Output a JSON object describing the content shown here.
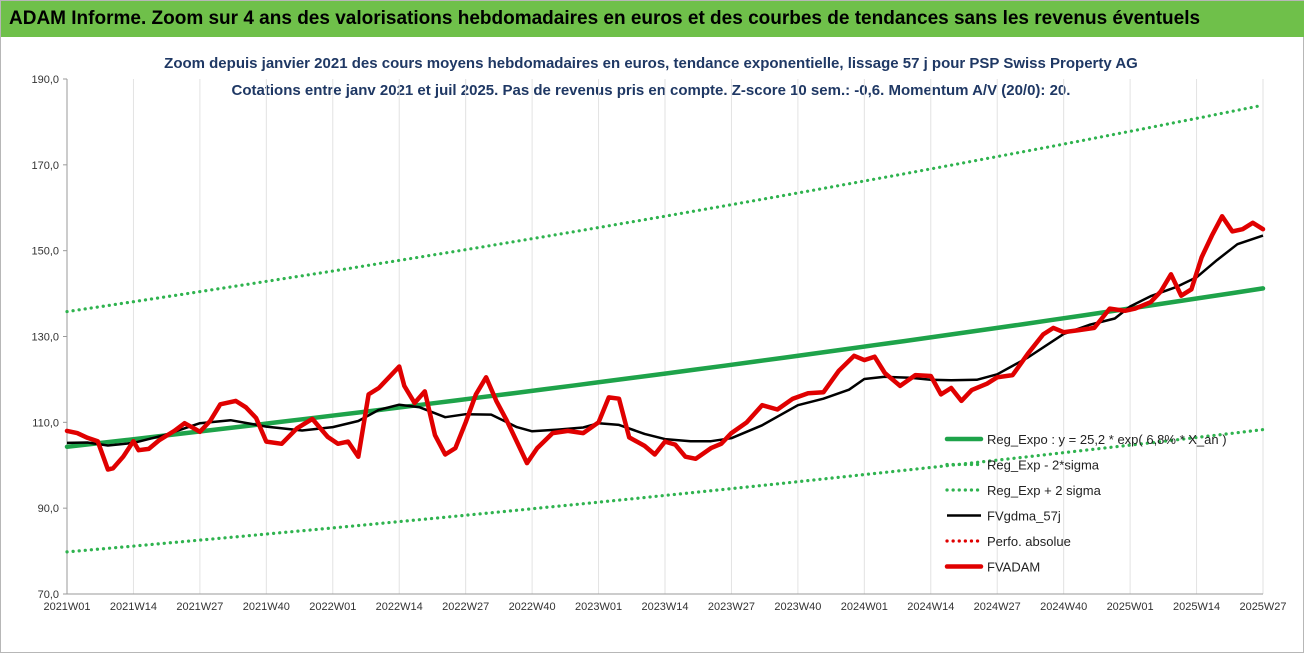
{
  "banner": {
    "title": "ADAM Informe. Zoom sur 4 ans des valorisations hebdomadaires en euros et des courbes de tendances sans les revenus éventuels"
  },
  "chart_data": {
    "type": "line",
    "title": "Zoom depuis janvier 2021 des cours moyens hebdomadaires en euros, tendance exponentielle, lissage 57 j pour PSP Swiss Property AG",
    "subtitle": "Cotations entre janv 2021 et juil 2025. Pas de revenus pris en compte. Z-score 10 sem.: -0,6. Momentum A/V (20/0): 20.",
    "xlabel": "",
    "ylabel": "",
    "ylim": [
      70,
      190
    ],
    "y_ticks": [
      "70,0",
      "90,0",
      "110,0",
      "130,0",
      "150,0",
      "170,0",
      "190,0"
    ],
    "x_ticks": [
      "2021W01",
      "2021W14",
      "2021W27",
      "2021W40",
      "2022W01",
      "2022W14",
      "2022W27",
      "2022W40",
      "2023W01",
      "2023W14",
      "2023W27",
      "2023W40",
      "2024W01",
      "2024W14",
      "2024W27",
      "2024W40",
      "2025W01",
      "2025W14",
      "2025W27"
    ],
    "grid": "vertical",
    "legend_position": "right",
    "legend": [
      {
        "label": "Reg_Expo : y = 25,2 * exp( 6,8% * X_an )",
        "color": "#1ea34a",
        "style": "solid-thick"
      },
      {
        "label": "Reg_Exp - 2*sigma",
        "color": "#2fb34f",
        "style": "dotted"
      },
      {
        "label": "Reg_Exp + 2 sigma",
        "color": "#2fb34f",
        "style": "dotted"
      },
      {
        "label": "FVgdma_57j",
        "color": "#000000",
        "style": "solid"
      },
      {
        "label": "Perfo. absolue",
        "color": "#e00000",
        "style": "dotted"
      },
      {
        "label": "FVADAM",
        "color": "#e00000",
        "style": "solid-thick"
      }
    ],
    "series": [
      {
        "name": "Reg_Expo : y = 25,2 * exp( 6,8% * X_an )",
        "x": [
          "2021W01",
          "2025W27"
        ],
        "values": [
          104.3,
          141.2
        ]
      },
      {
        "name": "Reg_Exp - 2*sigma",
        "x": [
          "2021W01",
          "2025W27"
        ],
        "values": [
          79.8,
          108.3
        ]
      },
      {
        "name": "Reg_Exp + 2 sigma",
        "x": [
          "2021W01",
          "2025W27"
        ],
        "values": [
          135.8,
          183.9
        ]
      },
      {
        "name": "FVgdma_57j",
        "x": [
          "2021W01",
          "2021W05",
          "2021W09",
          "2021W14",
          "2021W20",
          "2021W27",
          "2021W33",
          "2021W40",
          "2021W47",
          "2022W01",
          "2022W06",
          "2022W10",
          "2022W14",
          "2022W18",
          "2022W23",
          "2022W27",
          "2022W32",
          "2022W37",
          "2022W40",
          "2022W45",
          "2022W50",
          "2023W01",
          "2023W05",
          "2023W10",
          "2023W14",
          "2023W19",
          "2023W23",
          "2023W27",
          "2023W33",
          "2023W40",
          "2023W45",
          "2023W50",
          "2024W01",
          "2024W05",
          "2024W10",
          "2024W14",
          "2024W18",
          "2024W23",
          "2024W27",
          "2024W33",
          "2024W40",
          "2024W45",
          "2024W50",
          "2025W01",
          "2025W05",
          "2025W10",
          "2025W14",
          "2025W18",
          "2025W22",
          "2025W27"
        ],
        "values": [
          105.2,
          105.3,
          104.6,
          105.2,
          107.0,
          109.8,
          110.5,
          109.0,
          108.1,
          108.9,
          110.3,
          112.9,
          114.1,
          113.5,
          111.2,
          111.9,
          111.8,
          108.9,
          107.9,
          108.3,
          108.8,
          109.8,
          109.4,
          107.3,
          106.1,
          105.6,
          105.6,
          106.3,
          109.3,
          114.0,
          115.5,
          117.6,
          120.1,
          120.6,
          120.4,
          119.9,
          119.8,
          119.9,
          121.2,
          125.1,
          130.6,
          132.7,
          134.2,
          137.0,
          139.4,
          141.5,
          143.8,
          147.8,
          151.5,
          153.5
        ]
      },
      {
        "name": "FVADAM",
        "x": [
          "2021W01",
          "2021W03",
          "2021W05",
          "2021W07",
          "2021W09",
          "2021W10",
          "2021W12",
          "2021W14",
          "2021W15",
          "2021W17",
          "2021W19",
          "2021W22",
          "2021W24",
          "2021W26",
          "2021W27",
          "2021W29",
          "2021W31",
          "2021W34",
          "2021W36",
          "2021W38",
          "2021W40",
          "2021W43",
          "2021W46",
          "2021W49",
          "2021W52",
          "2022W02",
          "2022W04",
          "2022W06",
          "2022W08",
          "2022W10",
          "2022W12",
          "2022W14",
          "2022W15",
          "2022W17",
          "2022W19",
          "2022W21",
          "2022W23",
          "2022W25",
          "2022W27",
          "2022W29",
          "2022W31",
          "2022W33",
          "2022W35",
          "2022W37",
          "2022W39",
          "2022W41",
          "2022W44",
          "2022W47",
          "2022W50",
          "2023W01",
          "2023W03",
          "2023W05",
          "2023W07",
          "2023W10",
          "2023W12",
          "2023W14",
          "2023W16",
          "2023W18",
          "2023W20",
          "2023W23",
          "2023W25",
          "2023W27",
          "2023W30",
          "2023W33",
          "2023W36",
          "2023W39",
          "2023W42",
          "2023W45",
          "2023W48",
          "2023W51",
          "2024W01",
          "2024W03",
          "2024W05",
          "2024W08",
          "2024W11",
          "2024W14",
          "2024W16",
          "2024W18",
          "2024W20",
          "2024W22",
          "2024W25",
          "2024W27",
          "2024W30",
          "2024W33",
          "2024W36",
          "2024W38",
          "2024W40",
          "2024W43",
          "2024W46",
          "2024W49",
          "2024W52",
          "2025W02",
          "2025W05",
          "2025W07",
          "2025W09",
          "2025W11",
          "2025W13",
          "2025W15",
          "2025W17",
          "2025W19",
          "2025W21",
          "2025W23",
          "2025W25",
          "2025W27"
        ],
        "values": [
          108.0,
          107.5,
          106.4,
          105.6,
          99.0,
          99.3,
          102.0,
          105.6,
          103.5,
          103.8,
          105.8,
          108.0,
          109.8,
          108.5,
          107.8,
          110.3,
          114.2,
          115.0,
          113.5,
          111.0,
          105.5,
          105.0,
          108.6,
          110.8,
          106.6,
          105.0,
          105.5,
          102.0,
          116.5,
          118.0,
          120.5,
          123.0,
          118.5,
          114.5,
          117.2,
          107.0,
          102.5,
          104.0,
          110.0,
          116.5,
          120.5,
          115.0,
          110.5,
          105.5,
          100.5,
          104.0,
          107.5,
          108.0,
          107.5,
          110.0,
          115.8,
          115.5,
          106.5,
          104.5,
          102.5,
          105.5,
          104.8,
          102.0,
          101.5,
          104.0,
          105.0,
          107.5,
          110.0,
          114.0,
          113.0,
          115.5,
          116.8,
          117.0,
          122.0,
          125.5,
          124.5,
          125.3,
          121.5,
          118.5,
          121.0,
          120.8,
          116.5,
          118.0,
          115.0,
          117.5,
          119.0,
          120.5,
          121.0,
          126.0,
          130.5,
          132.0,
          131.0,
          131.5,
          132.0,
          136.5,
          136.0,
          136.5,
          138.0,
          140.5,
          144.5,
          139.5,
          141.0,
          148.5,
          153.5,
          158.0,
          154.5,
          155.0,
          156.5,
          155.0
        ]
      }
    ]
  }
}
